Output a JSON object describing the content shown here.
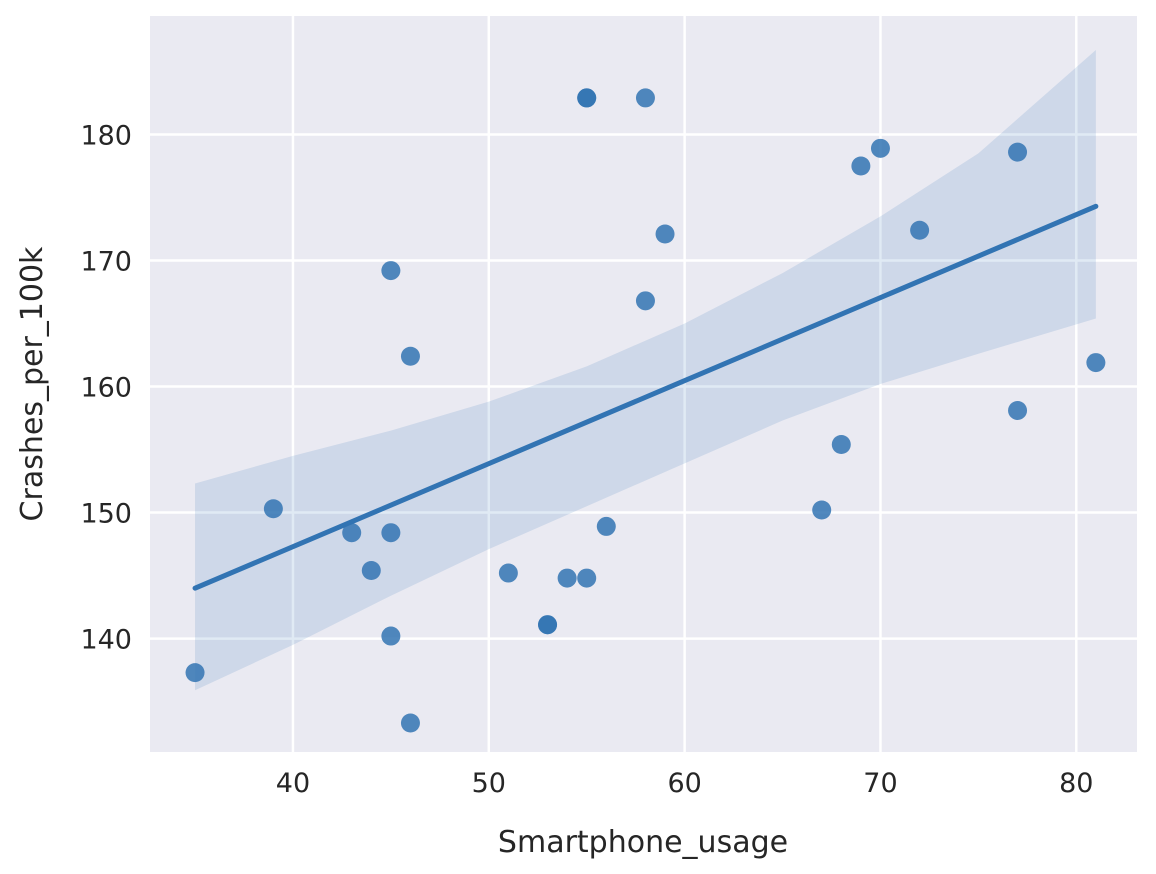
{
  "chart_data": {
    "type": "scatter",
    "title": "",
    "xlabel": "Smartphone_usage",
    "ylabel": "Crashes_per_100k",
    "xlim": [
      32.7,
      83.1
    ],
    "ylim": [
      131.0,
      189.4
    ],
    "xticks": [
      40,
      50,
      60,
      70,
      80
    ],
    "yticks": [
      140,
      150,
      160,
      170,
      180
    ],
    "grid": true,
    "legend": null,
    "style": {
      "background": "#eaeaf2",
      "grid_color": "#ffffff",
      "point_color": "#3274b3",
      "line_color": "#3274b3",
      "ci_color": "#3274b3"
    },
    "points": [
      {
        "x": 35,
        "y": 137.3
      },
      {
        "x": 39,
        "y": 150.3
      },
      {
        "x": 43,
        "y": 148.4
      },
      {
        "x": 44,
        "y": 145.4
      },
      {
        "x": 45,
        "y": 169.2
      },
      {
        "x": 45,
        "y": 148.4
      },
      {
        "x": 45,
        "y": 140.2
      },
      {
        "x": 46,
        "y": 162.4
      },
      {
        "x": 46,
        "y": 133.3
      },
      {
        "x": 51,
        "y": 145.2
      },
      {
        "x": 53,
        "y": 141.1
      },
      {
        "x": 53,
        "y": 141.1
      },
      {
        "x": 54,
        "y": 144.8
      },
      {
        "x": 55,
        "y": 144.8
      },
      {
        "x": 55,
        "y": 182.9
      },
      {
        "x": 55,
        "y": 182.9
      },
      {
        "x": 56,
        "y": 148.9
      },
      {
        "x": 58,
        "y": 182.9
      },
      {
        "x": 58,
        "y": 166.8
      },
      {
        "x": 59,
        "y": 172.1
      },
      {
        "x": 67,
        "y": 150.2
      },
      {
        "x": 68,
        "y": 155.4
      },
      {
        "x": 69,
        "y": 177.5
      },
      {
        "x": 70,
        "y": 178.9
      },
      {
        "x": 72,
        "y": 172.4
      },
      {
        "x": 77,
        "y": 178.6
      },
      {
        "x": 77,
        "y": 158.1
      },
      {
        "x": 81,
        "y": 161.9
      }
    ],
    "regression": {
      "x": [
        35,
        81
      ],
      "y": [
        144.0,
        174.3
      ]
    },
    "confidence_band": {
      "x": [
        35,
        40,
        45,
        50,
        55,
        60,
        65,
        70,
        75,
        81
      ],
      "upper": [
        152.3,
        154.5,
        156.5,
        158.8,
        161.6,
        165.0,
        169.0,
        173.5,
        178.5,
        186.7
      ],
      "lower": [
        135.9,
        139.5,
        143.4,
        147.1,
        150.5,
        153.9,
        157.3,
        160.2,
        162.6,
        165.4
      ]
    }
  }
}
